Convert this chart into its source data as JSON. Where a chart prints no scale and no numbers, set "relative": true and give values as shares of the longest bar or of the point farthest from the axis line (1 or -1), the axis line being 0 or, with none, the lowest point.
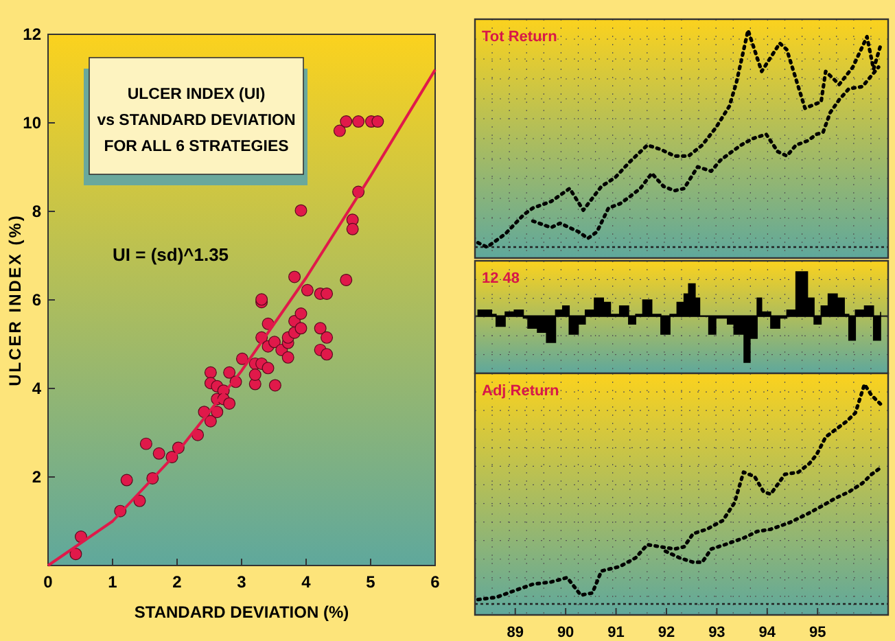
{
  "chart_data": [
    {
      "type": "scatter",
      "title": "ULCER INDEX (UI)\nvs STANDARD DEVIATION\nFOR ALL 6 STRATEGIES",
      "xlabel": "STANDARD DEVIATION (%)",
      "ylabel": "ULCER INDEX (%)",
      "annotations": [
        "UI = (sd)^1.35"
      ],
      "xlim": [
        0,
        6
      ],
      "ylim": [
        0,
        12
      ],
      "xticks": [
        0,
        1,
        2,
        3,
        4,
        5,
        6
      ],
      "yticks": [
        {
          "value": 0,
          "label": null
        },
        2,
        4,
        6,
        8,
        10,
        12
      ],
      "grid": false,
      "series": [
        {
          "type": "scatter",
          "marker": "circle",
          "color": "#e0194a",
          "x": [
            0.43,
            0.51,
            1.12,
            1.22,
            1.42,
            1.52,
            1.62,
            1.72,
            1.92,
            2.02,
            2.32,
            2.42,
            2.52,
            2.52,
            2.52,
            2.62,
            2.62,
            2.62,
            2.72,
            2.72,
            2.81,
            2.81,
            2.91,
            3.01,
            3.21,
            3.21,
            3.21,
            3.31,
            3.31,
            3.41,
            3.41,
            3.41,
            3.51,
            3.52,
            3.62,
            3.72,
            3.72,
            3.72,
            3.82,
            3.82,
            3.92,
            3.92,
            4.22,
            4.22,
            4.32,
            4.32,
            3.31,
            3.31,
            3.82,
            3.92,
            4.02,
            4.22,
            4.32,
            4.62,
            4.72,
            4.72,
            4.81,
            4.52,
            4.62,
            4.81,
            5.01,
            5.11
          ],
          "values": [
            0.26,
            0.65,
            1.23,
            1.93,
            1.46,
            2.75,
            1.97,
            2.53,
            2.45,
            2.66,
            2.95,
            3.47,
            3.26,
            4.36,
            4.12,
            3.47,
            3.76,
            4.05,
            3.95,
            3.76,
            3.66,
            4.36,
            4.15,
            4.67,
            4.1,
            4.56,
            4.31,
            4.56,
            5.15,
            4.46,
            4.95,
            5.46,
            5.05,
            4.07,
            4.87,
            4.7,
            5.03,
            5.15,
            5.26,
            5.52,
            5.36,
            5.69,
            5.36,
            4.87,
            5.15,
            4.77,
            5.95,
            6.01,
            6.52,
            8.02,
            6.22,
            6.14,
            6.14,
            6.45,
            7.81,
            7.6,
            8.44,
            9.82,
            10.03,
            10.03,
            10.03,
            10.03
          ]
        },
        {
          "type": "line",
          "color": "#e0194a",
          "x": [
            0,
            1,
            2,
            3,
            4,
            5,
            6
          ],
          "values": [
            0,
            1,
            2.55,
            4.4,
            6.5,
            8.8,
            11.2
          ]
        }
      ]
    },
    {
      "type": "line",
      "title": "Tot Return",
      "relative": true,
      "xlim": [
        1988.2,
        1996.4
      ],
      "grid": true,
      "line_style": "dotted",
      "series": [
        {
          "color": "#000000",
          "x": [
            1988.26,
            1988.44,
            1988.8,
            1989.17,
            1989.35,
            1989.71,
            1990.08,
            1990.35,
            1990.71,
            1990.98,
            1991.26,
            1991.62,
            1991.89,
            1992.16,
            1992.44,
            1992.71,
            1992.98,
            1993.25,
            1993.39,
            1993.62,
            1993.89,
            1994.25,
            1994.39,
            1994.75,
            1995.07,
            1995.16,
            1995.43,
            1995.7,
            1995.98,
            1996.11,
            1996.25
          ],
          "values": [
            0.02,
            0,
            0.06,
            0.15,
            0.18,
            0.21,
            0.27,
            0.17,
            0.28,
            0.32,
            0.39,
            0.47,
            0.45,
            0.42,
            0.42,
            0.47,
            0.55,
            0.65,
            0.76,
            1,
            0.81,
            0.94,
            0.91,
            0.64,
            0.67,
            0.81,
            0.75,
            0.83,
            0.97,
            0.82,
            0.93
          ]
        },
        {
          "color": "#000000",
          "x": [
            1989.35,
            1989.71,
            1989.89,
            1990.26,
            1990.44,
            1990.62,
            1990.85,
            1991.08,
            1991.26,
            1991.48,
            1991.71,
            1991.94,
            1992.16,
            1992.35,
            1992.62,
            1992.89,
            1993.07,
            1993.3,
            1993.48,
            1993.71,
            1993.98,
            1994.21,
            1994.39,
            1994.57,
            1994.8,
            1994.98,
            1995.11,
            1995.25,
            1995.43,
            1995.62,
            1995.89,
            1996.21
          ],
          "values": [
            0.12,
            0.09,
            0.11,
            0.07,
            0.04,
            0.07,
            0.18,
            0.2,
            0.23,
            0.27,
            0.34,
            0.28,
            0.26,
            0.27,
            0.37,
            0.35,
            0.4,
            0.44,
            0.47,
            0.5,
            0.52,
            0.44,
            0.42,
            0.47,
            0.49,
            0.52,
            0.53,
            0.62,
            0.68,
            0.73,
            0.74,
            0.83
          ]
        }
      ]
    },
    {
      "type": "area",
      "title": "12   48",
      "relative": true,
      "xlim": [
        1988.2,
        1996.4
      ],
      "grid": true,
      "series": [
        {
          "color": "#000000",
          "x": [
            1988.26,
            1988.53,
            1988.62,
            1988.8,
            1988.98,
            1989.16,
            1989.25,
            1989.44,
            1989.62,
            1989.8,
            1989.94,
            1990.07,
            1990.25,
            1990.39,
            1990.57,
            1990.75,
            1990.89,
            1991.07,
            1991.25,
            1991.39,
            1991.53,
            1991.71,
            1991.89,
            1992.07,
            1992.21,
            1992.35,
            1992.44,
            1992.57,
            1992.66,
            1992.84,
            1992.98,
            1993.21,
            1993.34,
            1993.54,
            1993.66,
            1993.8,
            1993.89,
            1994.07,
            1994.25,
            1994.39,
            1994.57,
            1994.8,
            1994.93,
            1995.07,
            1995.21,
            1995.39,
            1995.53,
            1995.62,
            1995.75,
            1995.93,
            1996.11,
            1996.25
          ],
          "values": [
            0.13,
            0.04,
            -0.22,
            0.09,
            0.13,
            -0.04,
            -0.26,
            -0.35,
            -0.57,
            0.13,
            0.22,
            -0.39,
            -0.17,
            0.13,
            0.39,
            0.3,
            0.04,
            0.22,
            -0.17,
            0.04,
            0.35,
            0.04,
            -0.39,
            0.04,
            0.3,
            0.48,
            0.7,
            0.39,
            0,
            -0.39,
            -0.04,
            -0.17,
            -0.39,
            -1,
            -0.48,
            0.39,
            0.09,
            -0.26,
            -0.04,
            0.13,
            0.96,
            0.39,
            -0.17,
            0.22,
            0.48,
            0.39,
            0.04,
            -0.52,
            0.13,
            0.22,
            -0.52,
            0.09
          ]
        }
      ]
    },
    {
      "type": "line",
      "title": "Adj Return",
      "relative": true,
      "xlim": [
        1988.2,
        1996.4
      ],
      "xticks": [
        {
          "value": 1989,
          "label": "89"
        },
        {
          "value": 1990,
          "label": "90"
        },
        {
          "value": 1991,
          "label": "91"
        },
        {
          "value": 1992,
          "label": "92"
        },
        {
          "value": 1993,
          "label": "93"
        },
        {
          "value": 1994,
          "label": "94"
        },
        {
          "value": 1995,
          "label": "95"
        }
      ],
      "tick_labels": "x",
      "grid": true,
      "line_style": "dotted",
      "series": [
        {
          "color": "#000000",
          "x": [
            1988.26,
            1988.62,
            1988.98,
            1989.35,
            1989.71,
            1990.03,
            1990.3,
            1990.53,
            1990.71,
            1991.07,
            1991.39,
            1991.62,
            1991.89,
            1992.16,
            1992.35,
            1992.53,
            1992.8,
            1993.12,
            1993.35,
            1993.53,
            1993.75,
            1993.93,
            1994.07,
            1994.35,
            1994.62,
            1994.84,
            1994.98,
            1995.16,
            1995.39,
            1995.57,
            1995.75,
            1995.93,
            1996.07,
            1996.25
          ],
          "values": [
            0.02,
            0.03,
            0.06,
            0.09,
            0.1,
            0.12,
            0.04,
            0.05,
            0.15,
            0.17,
            0.21,
            0.27,
            0.26,
            0.25,
            0.26,
            0.32,
            0.34,
            0.38,
            0.46,
            0.6,
            0.58,
            0.51,
            0.5,
            0.59,
            0.6,
            0.64,
            0.68,
            0.76,
            0.8,
            0.83,
            0.87,
            1,
            0.95,
            0.91
          ]
        },
        {
          "color": "#000000",
          "x": [
            1991.98,
            1992.26,
            1992.53,
            1992.71,
            1992.89,
            1993.16,
            1993.53,
            1993.8,
            1994.07,
            1994.44,
            1994.8,
            1995.12,
            1995.34,
            1995.62,
            1995.89,
            1996.07,
            1996.25
          ],
          "values": [
            0.24,
            0.21,
            0.19,
            0.19,
            0.25,
            0.27,
            0.3,
            0.33,
            0.34,
            0.37,
            0.41,
            0.45,
            0.48,
            0.51,
            0.55,
            0.59,
            0.62
          ]
        }
      ]
    }
  ]
}
